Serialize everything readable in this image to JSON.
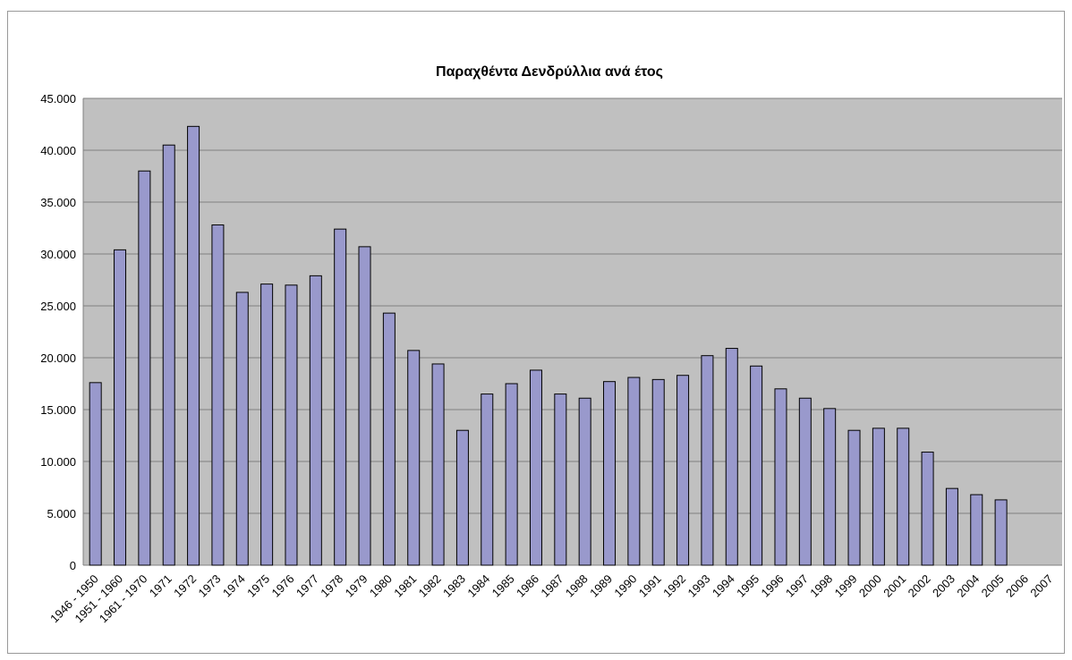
{
  "chart_data": {
    "type": "bar",
    "title": "Παραχθέντα Δενδρύλλια ανά έτος",
    "categories": [
      "1946 - 1950",
      "1951 - 1960",
      "1961 - 1970",
      "1971",
      "1972",
      "1973",
      "1974",
      "1975",
      "1976",
      "1977",
      "1978",
      "1979",
      "1980",
      "1981",
      "1982",
      "1983",
      "1984",
      "1985",
      "1986",
      "1987",
      "1988",
      "1989",
      "1990",
      "1991",
      "1992",
      "1993",
      "1994",
      "1995",
      "1996",
      "1997",
      "1998",
      "1999",
      "2000",
      "2001",
      "2002",
      "2003",
      "2004",
      "2005",
      "2006",
      "2007"
    ],
    "values": [
      17600,
      30400,
      38000,
      40500,
      42300,
      32800,
      26300,
      27100,
      27000,
      27900,
      32400,
      30700,
      24300,
      20700,
      19400,
      13000,
      16500,
      17500,
      18800,
      16500,
      16100,
      17700,
      18100,
      17900,
      18300,
      20200,
      20900,
      19200,
      17000,
      16100,
      15100,
      13000,
      13200,
      13200,
      10900,
      7400,
      6800,
      6300,
      null,
      null
    ],
    "color": "#9999cc",
    "ylim": [
      0,
      45000
    ],
    "yticks": [
      0,
      {
        "value": 5000,
        "label": "5.000"
      },
      {
        "value": 10000,
        "label": "10.000"
      },
      {
        "value": 15000,
        "label": "15.000"
      },
      {
        "value": 20000,
        "label": "20.000"
      },
      {
        "value": 25000,
        "label": "25.000"
      },
      {
        "value": 30000,
        "label": "30.000"
      },
      {
        "value": 35000,
        "label": "35.000"
      },
      {
        "value": 40000,
        "label": "40.000"
      },
      {
        "value": 45000,
        "label": "45.000"
      }
    ],
    "grid": true
  }
}
